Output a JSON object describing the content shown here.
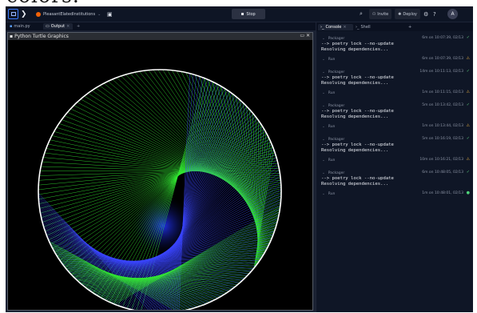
{
  "crop": {
    "text": "colors."
  },
  "topbar": {
    "repl_name": "PleasantElated­Institutions",
    "repl_caret": "⌄",
    "stop_label": "Stop",
    "invite_label": "Invite",
    "deploy_label": "Deploy",
    "avatar_initial": "A"
  },
  "tabs": [
    {
      "label": "main.py",
      "icon": "python-file-icon"
    },
    {
      "label": "Output",
      "icon": "output-icon",
      "active": true
    }
  ],
  "turtle_window": {
    "title": "Python Turtle Graphics"
  },
  "console_tabs": [
    {
      "label": "Console",
      "active": true
    },
    {
      "label": "Shell"
    }
  ],
  "console": {
    "entries": [
      {
        "kind": "Packager",
        "ts": "6m on 10:07:39, 02/13",
        "status": "ok",
        "output": "--> poetry lock --no-update\nResolving dependencies..."
      },
      {
        "kind": "Run",
        "ts": "6m on 10:07:39, 02/13",
        "status": "warn"
      },
      {
        "kind": "Packager",
        "ts": "14m on 10:11:13, 02/13",
        "status": "ok",
        "output": "--> poetry lock --no-update\nResolving dependencies..."
      },
      {
        "kind": "Run",
        "ts": "1m on 10:11:15, 02/13",
        "status": "warn"
      },
      {
        "kind": "Packager",
        "ts": "5m on 10:13:42, 02/13",
        "status": "ok",
        "output": "--> poetry lock --no-update\nResolving dependencies..."
      },
      {
        "kind": "Run",
        "ts": "1m on 10:13:44, 02/13",
        "status": "warn"
      },
      {
        "kind": "Packager",
        "ts": "5m on 10:16:19, 02/13",
        "status": "ok",
        "output": "--> poetry lock --no-update\nResolving dependencies..."
      },
      {
        "kind": "Run",
        "ts": "10m on 10:16:21, 02/13",
        "status": "warn"
      },
      {
        "kind": "Packager",
        "ts": "6m on 10:48:05, 02/13",
        "status": "ok",
        "output": "--> poetry lock --no-update\nResolving dependencies..."
      },
      {
        "kind": "Run",
        "ts": "1m on 10:48:01, 02/13",
        "status": "live"
      }
    ]
  },
  "colors": {
    "accent": "#3a7bff",
    "green_lines": "#33e633",
    "blue_lines": "#3a45ff",
    "circle": "#ffffff"
  }
}
